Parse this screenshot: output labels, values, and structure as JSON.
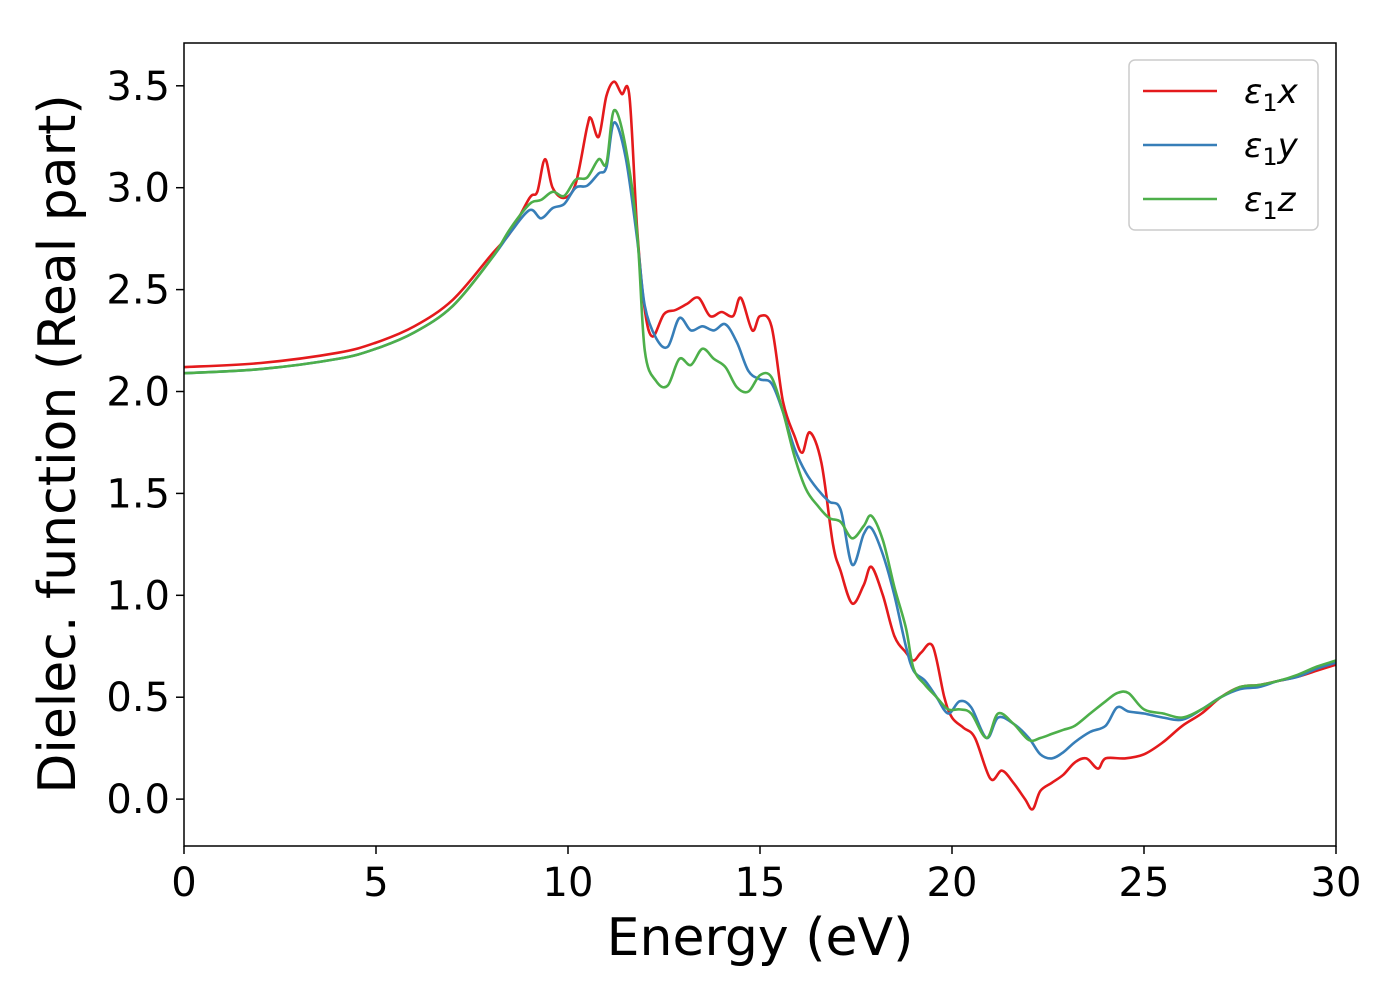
{
  "chart_data": {
    "type": "line",
    "title": "",
    "xlabel": "Energy (eV)",
    "ylabel": "Dielec. function (Real part)",
    "xlim": [
      0,
      30
    ],
    "ylim": [
      -0.23,
      3.71
    ],
    "xticks": [
      0,
      5,
      10,
      15,
      20,
      25,
      30
    ],
    "yticks": [
      0.0,
      0.5,
      1.0,
      1.5,
      2.0,
      2.5,
      3.0,
      3.5
    ],
    "grid": false,
    "legend_position": "top-right",
    "series": [
      {
        "name": "ε₁x",
        "sub": "1",
        "axis": "x",
        "color": "#e41a1c",
        "x": [
          0,
          2,
          4,
          5,
          6,
          7,
          8,
          8.5,
          9,
          9.2,
          9.4,
          9.6,
          9.9,
          10.2,
          10.5,
          10.6,
          10.8,
          11.0,
          11.2,
          11.4,
          11.6,
          11.8,
          12.0,
          12.2,
          12.5,
          12.8,
          13.1,
          13.4,
          13.7,
          14.0,
          14.3,
          14.5,
          14.8,
          15.0,
          15.3,
          15.6,
          15.9,
          16.1,
          16.3,
          16.6,
          16.9,
          17.1,
          17.4,
          17.7,
          17.9,
          18.2,
          18.5,
          18.8,
          19.0,
          19.2,
          19.5,
          19.8,
          20.0,
          20.3,
          20.6,
          21.0,
          21.3,
          21.6,
          21.9,
          22.1,
          22.3,
          22.6,
          22.9,
          23.2,
          23.5,
          23.8,
          24.0,
          24.5,
          25.0,
          25.5,
          26.0,
          26.5,
          27.0,
          27.5,
          28.0,
          28.5,
          29.0,
          29.5,
          30.0
        ],
        "y": [
          2.12,
          2.14,
          2.19,
          2.24,
          2.32,
          2.45,
          2.67,
          2.78,
          2.95,
          2.98,
          3.14,
          3.0,
          2.95,
          3.02,
          3.3,
          3.34,
          3.25,
          3.45,
          3.52,
          3.46,
          3.45,
          2.8,
          2.4,
          2.27,
          2.38,
          2.4,
          2.43,
          2.46,
          2.37,
          2.39,
          2.37,
          2.46,
          2.3,
          2.37,
          2.32,
          1.95,
          1.78,
          1.7,
          1.8,
          1.65,
          1.25,
          1.12,
          0.96,
          1.05,
          1.14,
          1.0,
          0.8,
          0.72,
          0.68,
          0.72,
          0.75,
          0.5,
          0.4,
          0.35,
          0.3,
          0.1,
          0.14,
          0.08,
          0.0,
          -0.05,
          0.04,
          0.08,
          0.12,
          0.18,
          0.2,
          0.15,
          0.2,
          0.2,
          0.22,
          0.28,
          0.36,
          0.42,
          0.5,
          0.55,
          0.56,
          0.58,
          0.6,
          0.63,
          0.66
        ]
      },
      {
        "name": "ε₁y",
        "sub": "1",
        "axis": "y",
        "color": "#377eb8",
        "x": [
          0,
          2,
          4,
          5,
          6,
          7,
          8,
          8.5,
          9,
          9.3,
          9.6,
          9.9,
          10.2,
          10.5,
          10.8,
          11.0,
          11.2,
          11.5,
          11.8,
          12.0,
          12.3,
          12.6,
          12.9,
          13.2,
          13.5,
          13.8,
          14.1,
          14.4,
          14.7,
          15.0,
          15.3,
          15.6,
          15.9,
          16.2,
          16.5,
          16.8,
          17.1,
          17.4,
          17.7,
          17.9,
          18.2,
          18.5,
          18.8,
          19.0,
          19.3,
          19.6,
          19.9,
          20.2,
          20.5,
          20.9,
          21.2,
          21.6,
          22.0,
          22.3,
          22.6,
          22.9,
          23.2,
          23.6,
          24.0,
          24.3,
          24.6,
          25.0,
          25.5,
          26.0,
          26.5,
          27.0,
          27.5,
          28.0,
          28.5,
          29.0,
          29.5,
          30.0
        ],
        "y": [
          2.09,
          2.11,
          2.16,
          2.21,
          2.29,
          2.42,
          2.65,
          2.78,
          2.89,
          2.85,
          2.9,
          2.92,
          3.0,
          3.01,
          3.07,
          3.1,
          3.32,
          3.15,
          2.75,
          2.42,
          2.26,
          2.22,
          2.36,
          2.3,
          2.32,
          2.3,
          2.33,
          2.24,
          2.1,
          2.06,
          2.04,
          1.9,
          1.72,
          1.6,
          1.52,
          1.46,
          1.42,
          1.15,
          1.3,
          1.33,
          1.2,
          1.0,
          0.75,
          0.63,
          0.58,
          0.5,
          0.42,
          0.48,
          0.45,
          0.3,
          0.4,
          0.37,
          0.3,
          0.22,
          0.2,
          0.23,
          0.28,
          0.33,
          0.36,
          0.45,
          0.43,
          0.42,
          0.4,
          0.39,
          0.44,
          0.5,
          0.54,
          0.55,
          0.58,
          0.6,
          0.64,
          0.67
        ]
      },
      {
        "name": "ε₁z",
        "sub": "1",
        "axis": "z",
        "color": "#4daf4a",
        "x": [
          0,
          2,
          4,
          5,
          6,
          7,
          8,
          8.5,
          9,
          9.3,
          9.6,
          9.9,
          10.2,
          10.5,
          10.8,
          11.0,
          11.2,
          11.5,
          11.8,
          12.0,
          12.3,
          12.6,
          12.9,
          13.2,
          13.5,
          13.8,
          14.1,
          14.4,
          14.7,
          15.0,
          15.3,
          15.6,
          15.9,
          16.2,
          16.5,
          16.8,
          17.1,
          17.4,
          17.7,
          17.9,
          18.2,
          18.5,
          18.8,
          19.0,
          19.3,
          19.6,
          19.9,
          20.2,
          20.5,
          20.9,
          21.2,
          21.6,
          22.0,
          22.3,
          22.6,
          22.9,
          23.2,
          23.6,
          24.0,
          24.3,
          24.6,
          25.0,
          25.5,
          26.0,
          26.5,
          27.0,
          27.5,
          28.0,
          28.5,
          29.0,
          29.5,
          30.0
        ],
        "y": [
          2.09,
          2.11,
          2.16,
          2.21,
          2.29,
          2.42,
          2.65,
          2.8,
          2.92,
          2.94,
          2.98,
          2.96,
          3.04,
          3.05,
          3.14,
          3.12,
          3.38,
          3.2,
          2.78,
          2.2,
          2.05,
          2.03,
          2.16,
          2.13,
          2.21,
          2.16,
          2.12,
          2.02,
          2.0,
          2.08,
          2.07,
          1.9,
          1.68,
          1.52,
          1.44,
          1.38,
          1.36,
          1.28,
          1.34,
          1.39,
          1.27,
          1.04,
          0.84,
          0.64,
          0.56,
          0.5,
          0.44,
          0.44,
          0.42,
          0.3,
          0.42,
          0.37,
          0.29,
          0.3,
          0.32,
          0.34,
          0.36,
          0.42,
          0.48,
          0.52,
          0.52,
          0.44,
          0.42,
          0.4,
          0.44,
          0.5,
          0.55,
          0.56,
          0.58,
          0.61,
          0.65,
          0.68
        ]
      }
    ]
  }
}
